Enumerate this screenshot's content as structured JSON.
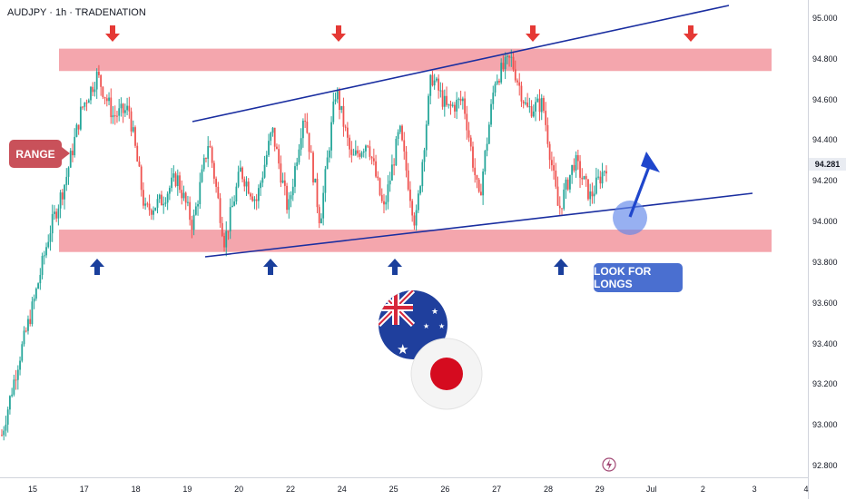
{
  "header": {
    "title": "AUDJPY · 1h · TRADENATION"
  },
  "annotations": {
    "range_label": "RANGE",
    "longs_label": "LOOK FOR LONGS",
    "last_price": "94.281"
  },
  "colors": {
    "up": "#26a69a",
    "down": "#ef5350",
    "zone": "#f4a6ad",
    "trendline": "#1a2ea0",
    "arrow_up": "#1a3f9c",
    "arrow_down": "#e53935",
    "callout_red": "#c9515a",
    "callout_blue": "#4a6fd0"
  },
  "chart_data": {
    "type": "candlestick",
    "symbol": "AUDJPY",
    "timeframe": "1h",
    "ylim": [
      92.8,
      95.0
    ],
    "y_ticks": [
      "95.000",
      "94.800",
      "94.600",
      "94.400",
      "94.200",
      "94.000",
      "93.800",
      "93.600",
      "93.400",
      "93.200",
      "93.000",
      "92.800"
    ],
    "x_ticks": [
      "15",
      "17",
      "18",
      "19",
      "20",
      "22",
      "24",
      "25",
      "26",
      "27",
      "28",
      "29",
      "Jul",
      "2",
      "3",
      "4"
    ],
    "resistance_zone": [
      94.74,
      94.85
    ],
    "support_zone": [
      93.85,
      93.96
    ],
    "last_price": 94.281,
    "price_path": [
      92.95,
      93.3,
      93.6,
      93.95,
      94.2,
      94.55,
      94.72,
      94.52,
      94.55,
      94.05,
      94.1,
      94.22,
      93.98,
      94.4,
      93.9,
      94.25,
      94.1,
      94.45,
      94.05,
      94.55,
      94.0,
      94.65,
      94.3,
      94.4,
      94.05,
      94.45,
      93.98,
      94.72,
      94.55,
      94.6,
      94.1,
      94.7,
      94.8,
      94.55,
      94.58,
      94.05,
      94.3,
      94.12,
      94.28
    ]
  }
}
